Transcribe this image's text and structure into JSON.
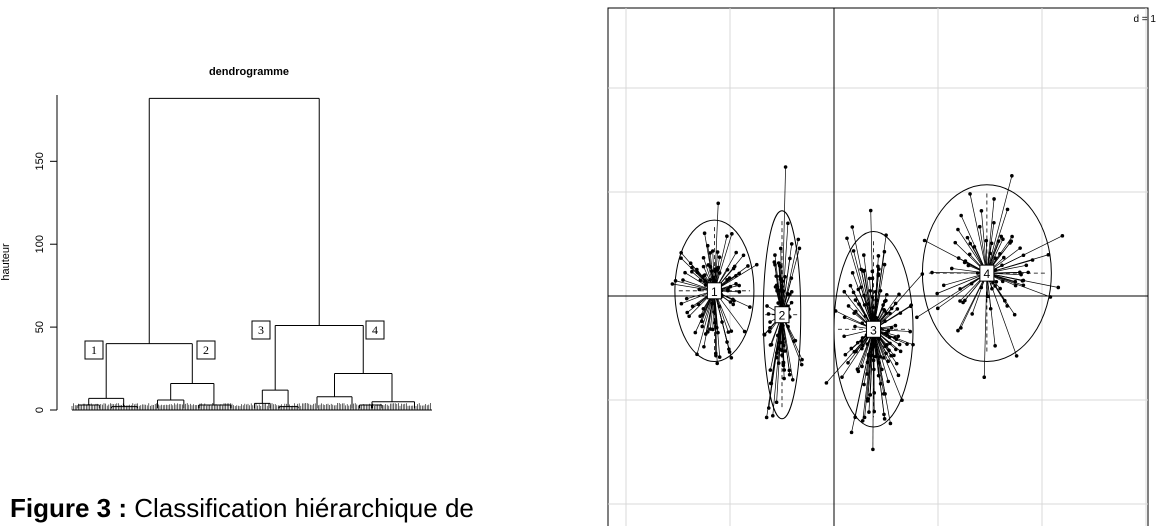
{
  "caption": {
    "bold": "Figure 3 :",
    "text": " Classification hiérarchique de"
  },
  "chart_data": [
    {
      "type": "dendrogram",
      "title": "dendrogramme",
      "ylabel": "hauteur",
      "ylim": [
        0,
        190
      ],
      "yticks": [
        0,
        50,
        100,
        150
      ],
      "merges": [
        {
          "groups": [
            "1",
            "2"
          ],
          "height": 40
        },
        {
          "groups": [
            "3",
            "4"
          ],
          "height": 51
        },
        {
          "groups": [
            "1-2",
            "3-4"
          ],
          "height": 188
        }
      ],
      "cluster_labels": [
        "1",
        "2",
        "3",
        "4"
      ],
      "sub_merge_heights": {
        "1": [
          7,
          3,
          2
        ],
        "2": [
          16,
          6,
          3
        ],
        "3": [
          12,
          4,
          2
        ],
        "4": [
          22,
          8,
          5,
          3
        ]
      }
    },
    {
      "type": "scatter",
      "corner_label": "d = 1",
      "axes": "centered",
      "grid": true,
      "cluster_centers": [
        {
          "label": "1",
          "x": -1.15,
          "y": 0.05
        },
        {
          "label": "2",
          "x": -0.5,
          "y": -0.18
        },
        {
          "label": "3",
          "x": 0.38,
          "y": -0.32
        },
        {
          "label": "4",
          "x": 1.47,
          "y": 0.22
        }
      ],
      "cluster_ellipses": [
        {
          "label": "1",
          "rx": 0.38,
          "ry": 0.68
        },
        {
          "label": "2",
          "rx": 0.18,
          "ry": 1.0
        },
        {
          "label": "3",
          "rx": 0.38,
          "ry": 0.94
        },
        {
          "label": "4",
          "rx": 0.62,
          "ry": 0.85
        }
      ]
    }
  ]
}
